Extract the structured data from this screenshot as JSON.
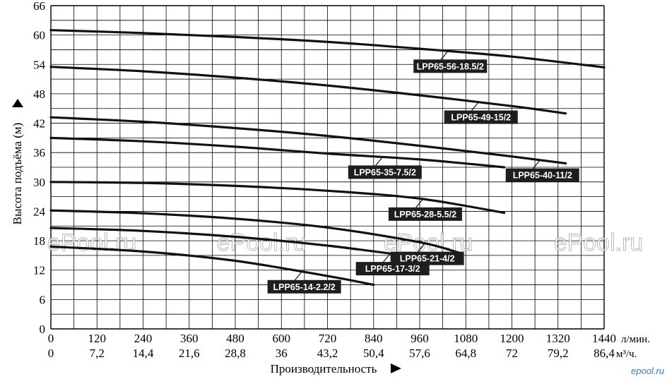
{
  "chart_data": {
    "type": "line",
    "title": "",
    "ylabel": "Высота подъёма (м)",
    "xlabel": "Производительность",
    "x_unit_primary": "л/мин.",
    "x_unit_secondary": "м³/ч.",
    "xlim": [
      0,
      1440
    ],
    "ylim": [
      0,
      66
    ],
    "x_ticks": [
      0,
      120,
      240,
      360,
      480,
      600,
      720,
      840,
      960,
      1080,
      1200,
      1320,
      1440
    ],
    "x_tick_labels": [
      "0",
      "120",
      "240",
      "360",
      "480",
      "600",
      "720",
      "840",
      "960",
      "1080",
      "1200",
      "1320",
      "1440"
    ],
    "x2_tick_labels": [
      "0",
      "7,2",
      "14,4",
      "21,6",
      "28,8",
      "36",
      "43,2",
      "50,4",
      "57,6",
      "64,8",
      "72",
      "79,2",
      "86,4"
    ],
    "y_ticks": [
      0,
      6,
      12,
      18,
      24,
      30,
      36,
      42,
      48,
      54,
      60,
      66
    ],
    "y_tick_labels": [
      "0",
      "6",
      "12",
      "18",
      "24",
      "30",
      "36",
      "42",
      "48",
      "54",
      "60",
      "66"
    ],
    "grid": true,
    "series": [
      {
        "name": "LPP65-56-18.5/2",
        "x": [
          0,
          240,
          480,
          720,
          960,
          1200,
          1440
        ],
        "y": [
          61,
          60.4,
          59.6,
          58.6,
          57.2,
          55.6,
          53.4
        ],
        "label_at": [
          1030,
          57.0
        ]
      },
      {
        "name": "LPP65-49-15/2",
        "x": [
          0,
          240,
          480,
          720,
          960,
          1200,
          1340
        ],
        "y": [
          53.5,
          52.6,
          51.3,
          49.7,
          47.7,
          45.5,
          44.0
        ],
        "label_at": [
          1110,
          46.2
        ]
      },
      {
        "name": "LPP65-40-11/2",
        "x": [
          0,
          240,
          480,
          720,
          960,
          1200,
          1340
        ],
        "y": [
          43.2,
          42.3,
          41.0,
          39.4,
          37.4,
          35.2,
          33.8
        ],
        "label_at": [
          1270,
          34.6
        ]
      },
      {
        "name": "LPP65-35-7.5/2",
        "x": [
          0,
          240,
          480,
          720,
          960,
          1180
        ],
        "y": [
          39.0,
          38.3,
          37.2,
          35.8,
          34.6,
          33.0
        ],
        "label_at": [
          860,
          35.6
        ]
      },
      {
        "name": "LPP65-28-5.5/2",
        "x": [
          0,
          240,
          480,
          720,
          960,
          1180
        ],
        "y": [
          30.0,
          29.8,
          29.2,
          28.2,
          26.6,
          23.7
        ],
        "label_at": [
          965,
          26.8
        ]
      },
      {
        "name": "LPP65-21-4/2",
        "x": [
          0,
          240,
          480,
          720,
          960,
          1060
        ],
        "y": [
          24.2,
          23.6,
          22.5,
          20.7,
          17.7,
          15.6
        ],
        "label_at": [
          970,
          17.6
        ]
      },
      {
        "name": "LPP65-17-3/2",
        "x": [
          0,
          240,
          480,
          720,
          940
        ],
        "y": [
          20.6,
          20.0,
          18.8,
          17.0,
          14.8
        ],
        "label_at": [
          880,
          15.9
        ]
      },
      {
        "name": "LPP65-14-2.2/2",
        "x": [
          0,
          240,
          480,
          720,
          840
        ],
        "y": [
          16.8,
          15.8,
          13.9,
          10.8,
          9.0
        ],
        "label_at": [
          650,
          12.5
        ]
      }
    ]
  },
  "watermarks": [
    "ePool.ru",
    "ePool.ru",
    "ePool.ru",
    "ePool.ru"
  ],
  "brand": "epool.ru"
}
